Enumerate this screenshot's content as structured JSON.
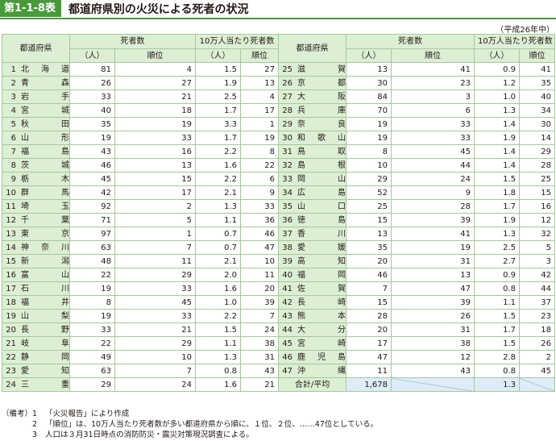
{
  "title": {
    "badge": "第1-1-8表",
    "text": "都道府県別の火災による死者の状況"
  },
  "era": "（平成26年中）",
  "headers": {
    "pref": "都道府県",
    "deaths": "死者数",
    "per100k": "10万人当たり死者数",
    "count": "（人）",
    "rank": "順位"
  },
  "left_rows": [
    {
      "no": "1",
      "name": "北海道",
      "deaths": "81",
      "rank": "4",
      "per": "1.5",
      "prank": "27"
    },
    {
      "no": "2",
      "name": "青森",
      "deaths": "26",
      "rank": "27",
      "per": "1.9",
      "prank": "13"
    },
    {
      "no": "3",
      "name": "岩手",
      "deaths": "33",
      "rank": "21",
      "per": "2.5",
      "prank": "4"
    },
    {
      "no": "4",
      "name": "宮城",
      "deaths": "40",
      "rank": "18",
      "per": "1.7",
      "prank": "17"
    },
    {
      "no": "5",
      "name": "秋田",
      "deaths": "35",
      "rank": "19",
      "per": "3.3",
      "prank": "1"
    },
    {
      "no": "6",
      "name": "山形",
      "deaths": "19",
      "rank": "33",
      "per": "1.7",
      "prank": "19"
    },
    {
      "no": "7",
      "name": "福島",
      "deaths": "43",
      "rank": "16",
      "per": "2.2",
      "prank": "8"
    },
    {
      "no": "8",
      "name": "茨城",
      "deaths": "46",
      "rank": "13",
      "per": "1.6",
      "prank": "22"
    },
    {
      "no": "9",
      "name": "栃木",
      "deaths": "45",
      "rank": "15",
      "per": "2.2",
      "prank": "6"
    },
    {
      "no": "10",
      "name": "群馬",
      "deaths": "42",
      "rank": "17",
      "per": "2.1",
      "prank": "9"
    },
    {
      "no": "11",
      "name": "埼玉",
      "deaths": "92",
      "rank": "2",
      "per": "1.3",
      "prank": "33"
    },
    {
      "no": "12",
      "name": "千葉",
      "deaths": "71",
      "rank": "5",
      "per": "1.1",
      "prank": "36"
    },
    {
      "no": "13",
      "name": "東京",
      "deaths": "97",
      "rank": "1",
      "per": "0.7",
      "prank": "46"
    },
    {
      "no": "14",
      "name": "神奈川",
      "deaths": "63",
      "rank": "7",
      "per": "0.7",
      "prank": "47"
    },
    {
      "no": "15",
      "name": "新潟",
      "deaths": "48",
      "rank": "11",
      "per": "2.1",
      "prank": "10"
    },
    {
      "no": "16",
      "name": "富山",
      "deaths": "22",
      "rank": "29",
      "per": "2.0",
      "prank": "11"
    },
    {
      "no": "17",
      "name": "石川",
      "deaths": "19",
      "rank": "33",
      "per": "1.6",
      "prank": "20"
    },
    {
      "no": "18",
      "name": "福井",
      "deaths": "8",
      "rank": "45",
      "per": "1.0",
      "prank": "39"
    },
    {
      "no": "19",
      "name": "山梨",
      "deaths": "19",
      "rank": "33",
      "per": "2.2",
      "prank": "7"
    },
    {
      "no": "20",
      "name": "長野",
      "deaths": "33",
      "rank": "21",
      "per": "1.5",
      "prank": "24"
    },
    {
      "no": "21",
      "name": "岐阜",
      "deaths": "22",
      "rank": "29",
      "per": "1.1",
      "prank": "38"
    },
    {
      "no": "22",
      "name": "静岡",
      "deaths": "49",
      "rank": "10",
      "per": "1.3",
      "prank": "31"
    },
    {
      "no": "23",
      "name": "愛知",
      "deaths": "63",
      "rank": "7",
      "per": "0.8",
      "prank": "43"
    },
    {
      "no": "24",
      "name": "三重",
      "deaths": "29",
      "rank": "24",
      "per": "1.6",
      "prank": "21"
    }
  ],
  "right_rows": [
    {
      "no": "25",
      "name": "滋賀",
      "deaths": "13",
      "rank": "41",
      "per": "0.9",
      "prank": "41"
    },
    {
      "no": "26",
      "name": "京都",
      "deaths": "30",
      "rank": "23",
      "per": "1.2",
      "prank": "35"
    },
    {
      "no": "27",
      "name": "大阪",
      "deaths": "84",
      "rank": "3",
      "per": "1.0",
      "prank": "40"
    },
    {
      "no": "28",
      "name": "兵庫",
      "deaths": "70",
      "rank": "6",
      "per": "1.3",
      "prank": "34"
    },
    {
      "no": "29",
      "name": "奈良",
      "deaths": "19",
      "rank": "33",
      "per": "1.4",
      "prank": "30"
    },
    {
      "no": "30",
      "name": "和歌山",
      "deaths": "19",
      "rank": "33",
      "per": "1.9",
      "prank": "14"
    },
    {
      "no": "31",
      "name": "鳥取",
      "deaths": "8",
      "rank": "45",
      "per": "1.4",
      "prank": "29"
    },
    {
      "no": "32",
      "name": "島根",
      "deaths": "10",
      "rank": "44",
      "per": "1.4",
      "prank": "28"
    },
    {
      "no": "33",
      "name": "岡山",
      "deaths": "29",
      "rank": "24",
      "per": "1.5",
      "prank": "25"
    },
    {
      "no": "34",
      "name": "広島",
      "deaths": "52",
      "rank": "9",
      "per": "1.8",
      "prank": "15"
    },
    {
      "no": "35",
      "name": "山口",
      "deaths": "25",
      "rank": "28",
      "per": "1.7",
      "prank": "16"
    },
    {
      "no": "36",
      "name": "徳島",
      "deaths": "15",
      "rank": "39",
      "per": "1.9",
      "prank": "12"
    },
    {
      "no": "37",
      "name": "香川",
      "deaths": "13",
      "rank": "41",
      "per": "1.3",
      "prank": "32"
    },
    {
      "no": "38",
      "name": "愛媛",
      "deaths": "35",
      "rank": "19",
      "per": "2.5",
      "prank": "5"
    },
    {
      "no": "39",
      "name": "高知",
      "deaths": "20",
      "rank": "31",
      "per": "2.7",
      "prank": "3"
    },
    {
      "no": "40",
      "name": "福岡",
      "deaths": "46",
      "rank": "13",
      "per": "0.9",
      "prank": "42"
    },
    {
      "no": "41",
      "name": "佐賀",
      "deaths": "7",
      "rank": "47",
      "per": "0.8",
      "prank": "44"
    },
    {
      "no": "42",
      "name": "長崎",
      "deaths": "15",
      "rank": "39",
      "per": "1.1",
      "prank": "37"
    },
    {
      "no": "43",
      "name": "熊本",
      "deaths": "28",
      "rank": "26",
      "per": "1.5",
      "prank": "23"
    },
    {
      "no": "44",
      "name": "大分",
      "deaths": "20",
      "rank": "31",
      "per": "1.7",
      "prank": "18"
    },
    {
      "no": "45",
      "name": "宮崎",
      "deaths": "17",
      "rank": "38",
      "per": "1.5",
      "prank": "26"
    },
    {
      "no": "46",
      "name": "鹿児島",
      "deaths": "47",
      "rank": "12",
      "per": "2.8",
      "prank": "2"
    },
    {
      "no": "47",
      "name": "沖縄",
      "deaths": "11",
      "rank": "43",
      "per": "0.8",
      "prank": "45"
    }
  ],
  "total": {
    "label": "合計/平均",
    "deaths": "1,678",
    "per": "1.3"
  },
  "notes": {
    "head": "（備考）",
    "items": [
      {
        "num": "1",
        "text": "「火災報告」により作成"
      },
      {
        "num": "2",
        "text": "「順位」は、10万人当たり死者数が多い都道府県から順に、１位、２位、……47位としている。"
      },
      {
        "num": "3",
        "text": "人口は３月31日時点の消防防災・震災対策現況調査による。"
      }
    ]
  }
}
